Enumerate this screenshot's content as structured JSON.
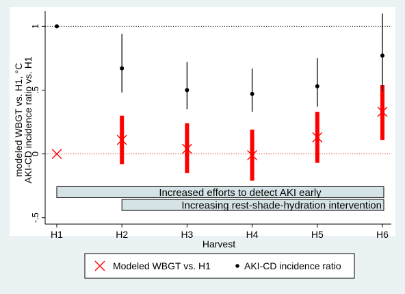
{
  "chart_data": {
    "type": "scatter",
    "categories": [
      "H1",
      "H2",
      "H3",
      "H4",
      "H5",
      "H6"
    ],
    "xlabel": "Harvest",
    "ylabel_lines": [
      "AKI-CD incidence ratio vs. H1",
      "modeled WBGT vs. H1, °C"
    ],
    "ylim": [
      -0.55,
      1.12
    ],
    "yticks": [
      -0.5,
      0,
      0.5,
      1
    ],
    "ytick_labels": [
      "-.5",
      "0",
      ".5",
      "1"
    ],
    "grid": false,
    "reference_lines": [
      {
        "y": 1,
        "color": "#000000",
        "style": "dotted"
      },
      {
        "y": 0,
        "color": "#e8190e",
        "style": "dotted"
      }
    ],
    "series": [
      {
        "name": "Modeled WBGT vs. H1",
        "marker": "x",
        "color": "#ff0000",
        "values": [
          0,
          0.11,
          0.04,
          -0.01,
          0.13,
          0.33
        ],
        "ci_low": [
          null,
          -0.08,
          -0.15,
          -0.21,
          -0.07,
          0.11
        ],
        "ci_high": [
          null,
          0.3,
          0.24,
          0.19,
          0.33,
          0.54
        ]
      },
      {
        "name": "AKI-CD incidence ratio",
        "marker": "dot",
        "color": "#000000",
        "values": [
          1,
          0.67,
          0.5,
          0.47,
          0.53,
          0.77
        ],
        "ci_low": [
          null,
          0.48,
          0.35,
          0.33,
          0.37,
          0.49
        ],
        "ci_high": [
          null,
          0.94,
          0.72,
          0.67,
          0.75,
          1.1
        ]
      }
    ],
    "annotations": [
      {
        "text": "Increased efforts to detect AKI early",
        "from": "H1",
        "to": "H6",
        "y_center": -0.3
      },
      {
        "text": "Increasing rest-shade-hydration intervention",
        "from": "H2",
        "to": "H6",
        "y_center": -0.4
      }
    ],
    "annotation_fill": "#d6e3e6",
    "legend": {
      "position": "bottom",
      "entries": [
        {
          "label": "Modeled WBGT vs. H1",
          "marker": "x",
          "color": "#ff0000"
        },
        {
          "label": "AKI-CD incidence ratio",
          "marker": "dot",
          "color": "#000000"
        }
      ]
    }
  }
}
